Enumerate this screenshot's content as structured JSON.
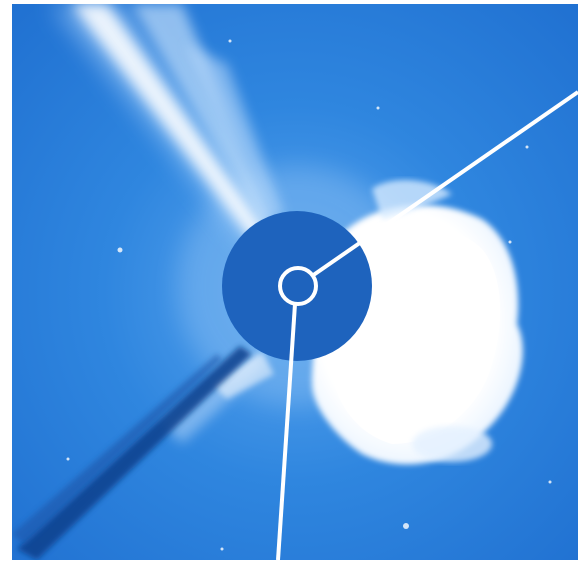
{
  "image": {
    "kind": "coronagraph-image",
    "colors": {
      "background": "#ffffff",
      "sky": "#2f86df",
      "sky_dark": "#1f67c4",
      "disk": "#1e63bd",
      "streak": "#0e3f8c",
      "highlight": "#ffffff"
    },
    "icons": [
      "occulting-disk",
      "sun-circle",
      "instrument-pylon",
      "coronal-mass-ejection",
      "coronal-streamer"
    ]
  }
}
